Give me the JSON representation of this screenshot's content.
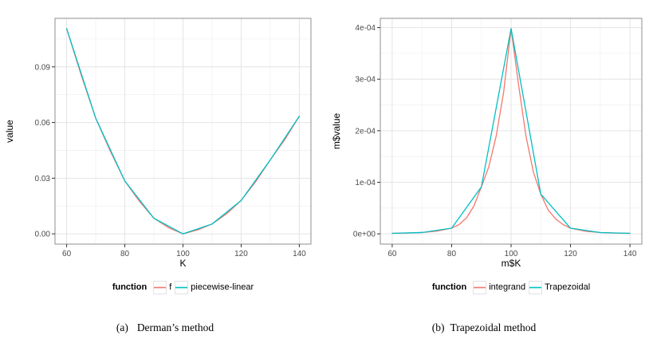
{
  "palette": {
    "red": "#F8766D",
    "teal": "#00BFC4",
    "grid_major": "#E4E4E4",
    "grid_minor": "#F1F1F1",
    "panel_border": "#8F8F8F",
    "tick_mark": "#333333",
    "axis_text": "#4A4A4A"
  },
  "chart_data": [
    {
      "type": "line",
      "caption_label": "(a)",
      "caption_text": "Derman’s method",
      "xlabel": "K",
      "ylabel": "value",
      "legend_title": "function",
      "legend_position": "bottom",
      "grid": "on",
      "x_domain": [
        56,
        144
      ],
      "y_domain": [
        -0.00553,
        0.11613
      ],
      "x_ticks": [
        60,
        80,
        100,
        120,
        140
      ],
      "x_tick_labels": [
        "60",
        "80",
        "100",
        "120",
        "140"
      ],
      "x_minor": [
        70,
        90,
        110,
        130
      ],
      "y_ticks": [
        0,
        0.03,
        0.06,
        0.09
      ],
      "y_tick_labels": [
        "0.00",
        "0.03",
        "0.06",
        "0.09"
      ],
      "y_minor": [
        0.015,
        0.045,
        0.075,
        0.105
      ],
      "series": [
        {
          "name": "f",
          "color": "red",
          "x": [
            60,
            65,
            70,
            75,
            80,
            85,
            90,
            95,
            100,
            105,
            110,
            115,
            120,
            125,
            130,
            135,
            140
          ],
          "y": [
            0.1106,
            0.0856,
            0.0623,
            0.0446,
            0.0285,
            0.0176,
            0.0084,
            0.0034,
            0.0,
            0.0021,
            0.0053,
            0.0108,
            0.018,
            0.0281,
            0.0398,
            0.0508,
            0.0634
          ]
        },
        {
          "name": "piecewise-linear",
          "color": "teal",
          "x": [
            60,
            70,
            80,
            90,
            100,
            110,
            120,
            130,
            140
          ],
          "y": [
            0.1106,
            0.0623,
            0.0285,
            0.0084,
            0.0,
            0.0053,
            0.018,
            0.0398,
            0.0634
          ]
        }
      ]
    },
    {
      "type": "line",
      "caption_label": "(b)",
      "caption_text": "Trapezoidal method",
      "xlabel": "m$K",
      "ylabel": "m$value",
      "legend_title": "function",
      "legend_position": "bottom",
      "grid": "on",
      "x_domain": [
        56,
        144
      ],
      "y_domain": [
        -1.99e-05,
        0.0004179
      ],
      "x_ticks": [
        60,
        80,
        100,
        120,
        140
      ],
      "x_tick_labels": [
        "60",
        "80",
        "100",
        "120",
        "140"
      ],
      "x_minor": [
        70,
        90,
        110,
        130
      ],
      "y_ticks": [
        0,
        0.0001,
        0.0002,
        0.0003,
        0.0004
      ],
      "y_tick_labels": [
        "0e+00",
        "1e-04",
        "2e-04",
        "3e-04",
        "4e-04"
      ],
      "y_minor": [
        5e-05,
        0.00015,
        0.00025,
        0.00035
      ],
      "series": [
        {
          "name": "integrand",
          "color": "red",
          "x": [
            60,
            65,
            70,
            75,
            80,
            82.5,
            85,
            87.5,
            90,
            92.5,
            95,
            97.5,
            100,
            102.5,
            105,
            107.5,
            110,
            112.5,
            115,
            117.5,
            120,
            125,
            130,
            135,
            140
          ],
          "y": [
            1e-06,
            1.6e-06,
            2.6e-06,
            5.2e-06,
            1.1e-05,
            1.8e-05,
            3.1e-05,
            5.4e-05,
            9.1e-05,
            0.00013,
            0.00019,
            0.000275,
            0.000398,
            0.00029,
            0.00019,
            0.00012,
            7.7e-05,
            4.6e-05,
            2.9e-05,
            1.8e-05,
            1.1e-05,
            5e-06,
            2.5e-06,
            1.6e-06,
            1e-06
          ]
        },
        {
          "name": "Trapezoidal",
          "color": "teal",
          "x": [
            60,
            70,
            80,
            90,
            100,
            110,
            120,
            130,
            140
          ],
          "y": [
            1e-06,
            2.6e-06,
            1.1e-05,
            9.1e-05,
            0.000398,
            7.7e-05,
            1.1e-05,
            2.5e-06,
            1e-06
          ]
        }
      ]
    }
  ]
}
